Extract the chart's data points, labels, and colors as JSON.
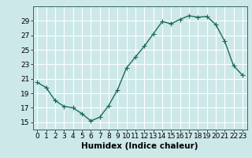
{
  "x": [
    0,
    1,
    2,
    3,
    4,
    5,
    6,
    7,
    8,
    9,
    10,
    11,
    12,
    13,
    14,
    15,
    16,
    17,
    18,
    19,
    20,
    21,
    22,
    23
  ],
  "y": [
    20.5,
    19.8,
    18.0,
    17.2,
    17.0,
    16.2,
    15.2,
    15.7,
    17.3,
    19.5,
    22.5,
    24.0,
    25.5,
    27.2,
    28.9,
    28.6,
    29.2,
    29.7,
    29.5,
    29.6,
    28.5,
    26.2,
    22.8,
    21.5
  ],
  "line_color": "#1a6b5a",
  "marker": "+",
  "marker_size": 4,
  "bg_color": "#cde8e8",
  "grid_color": "#ffffff",
  "xlabel": "Humidex (Indice chaleur)",
  "ylim": [
    14,
    31
  ],
  "xlim": [
    -0.5,
    23.5
  ],
  "yticks": [
    15,
    17,
    19,
    21,
    23,
    25,
    27,
    29
  ],
  "xticks": [
    0,
    1,
    2,
    3,
    4,
    5,
    6,
    7,
    8,
    9,
    10,
    11,
    12,
    13,
    14,
    15,
    16,
    17,
    18,
    19,
    20,
    21,
    22,
    23
  ],
  "xtick_labels": [
    "0",
    "1",
    "2",
    "3",
    "4",
    "5",
    "6",
    "7",
    "8",
    "9",
    "10",
    "11",
    "12",
    "13",
    "14",
    "15",
    "16",
    "17",
    "18",
    "19",
    "20",
    "21",
    "22",
    "23"
  ],
  "font_size": 6.5,
  "xlabel_fontsize": 7.5,
  "linewidth": 1.0,
  "markeredgewidth": 0.8
}
